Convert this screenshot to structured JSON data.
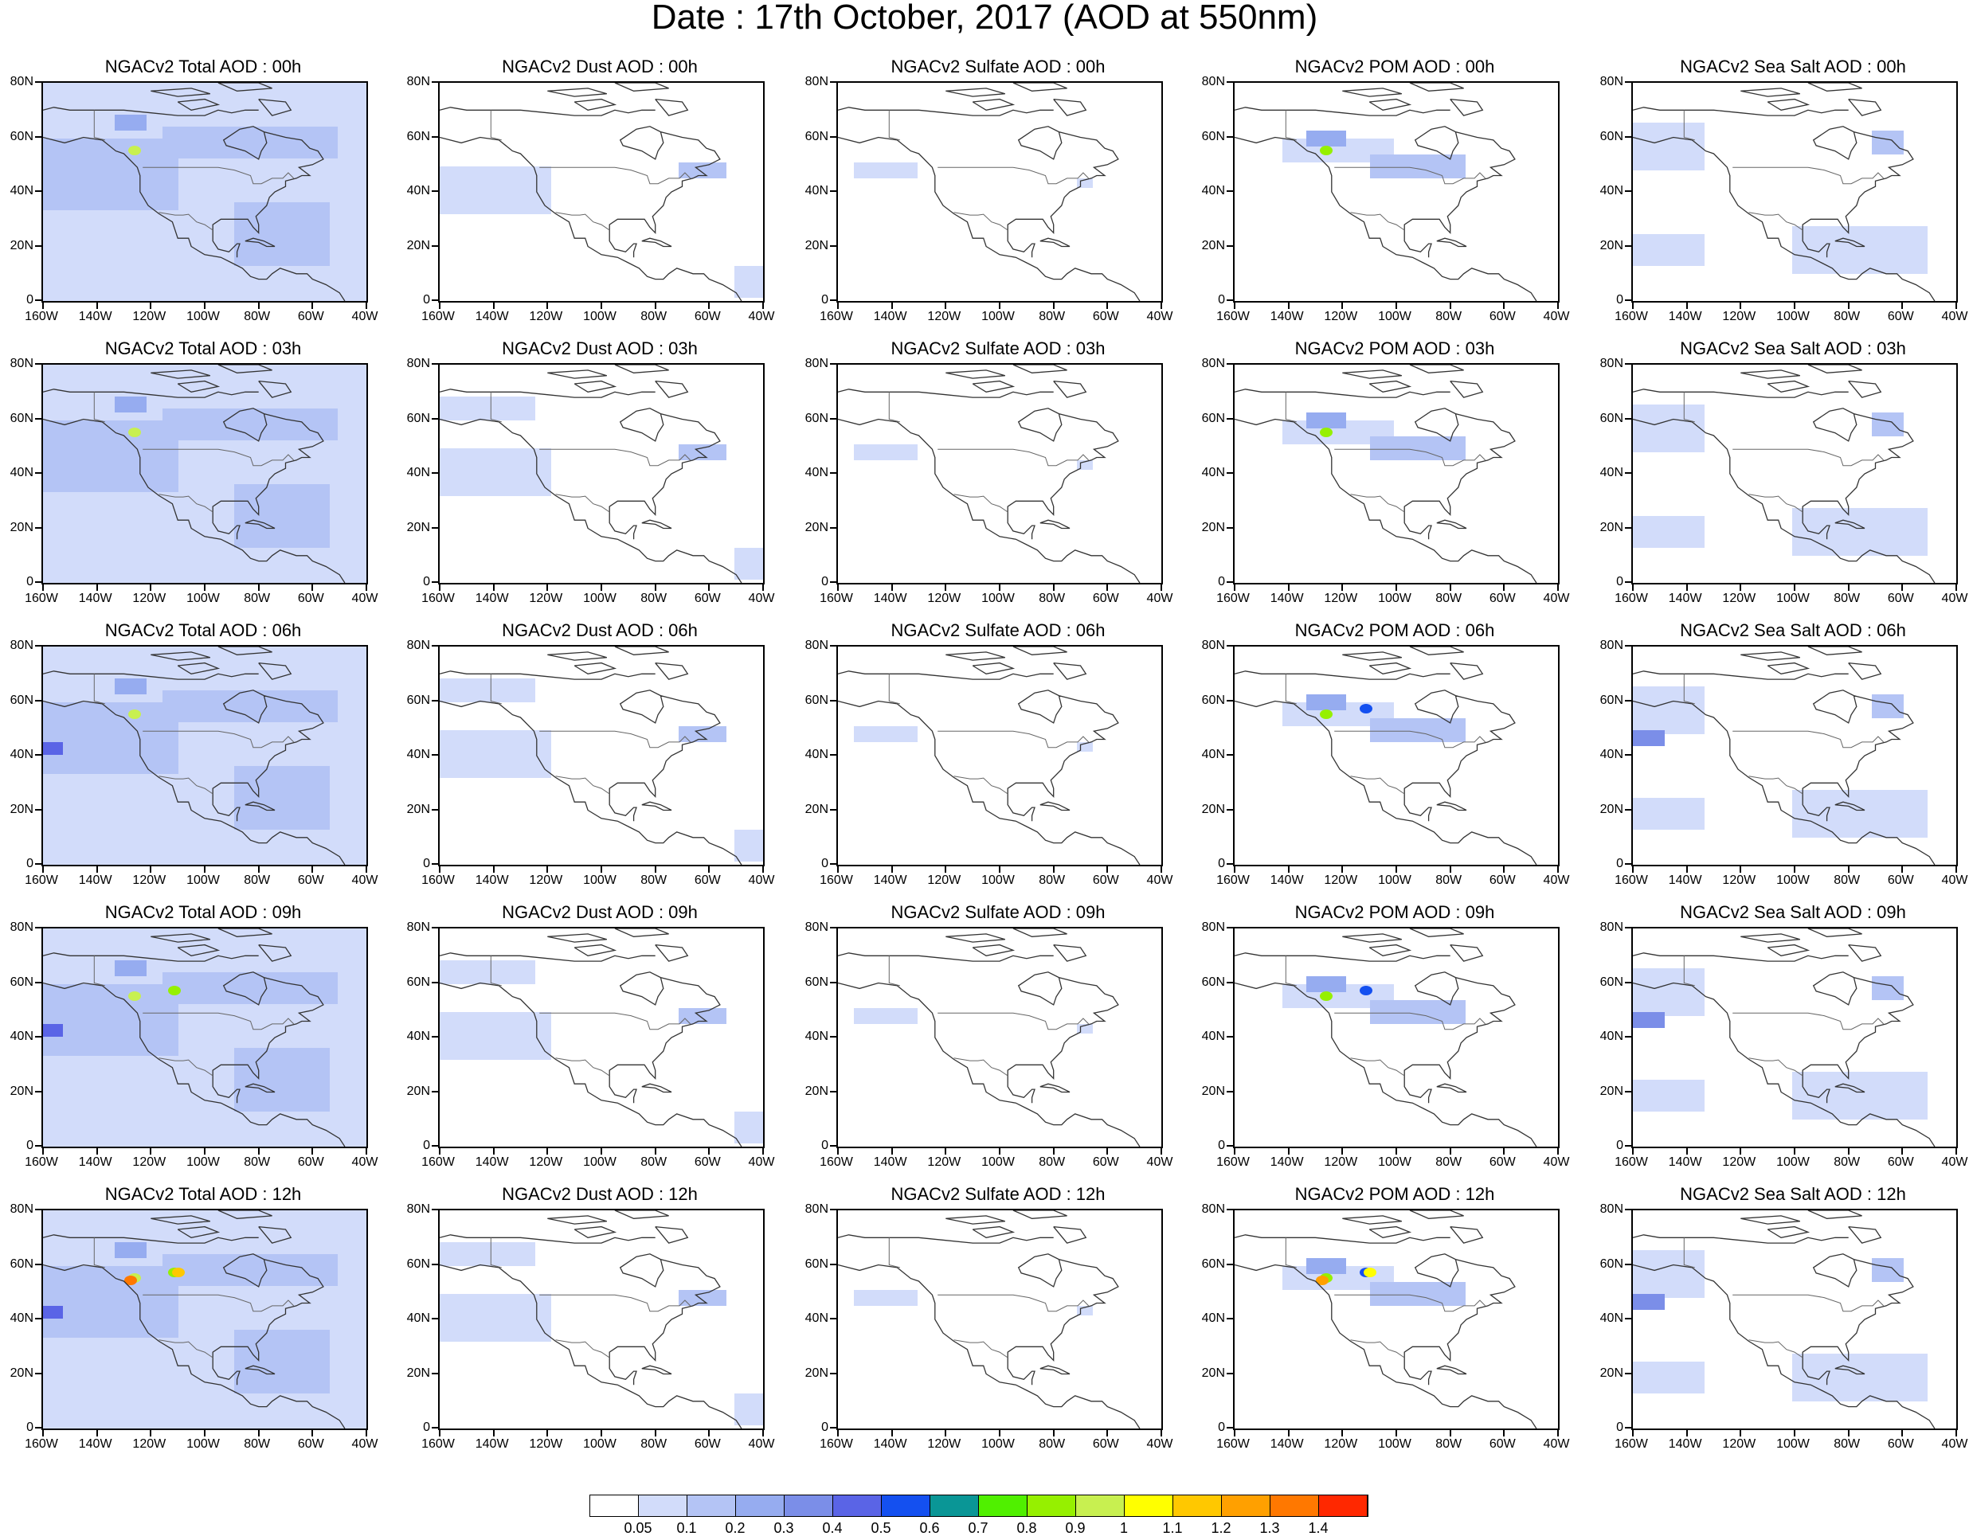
{
  "title": "Date : 17th October, 2017 (AOD at 550nm)",
  "y_labels": [
    "80N",
    "60N",
    "40N",
    "20N",
    "0"
  ],
  "x_labels": [
    "160W",
    "140W",
    "120W",
    "100W",
    "80W",
    "60W",
    "40W"
  ],
  "panels": [
    [
      "NGACv2 Total AOD : 00h",
      "NGACv2 Dust AOD : 00h",
      "NGACv2 Sulfate AOD : 00h",
      "NGACv2 POM AOD : 00h",
      "NGACv2 Sea Salt AOD : 00h"
    ],
    [
      "NGACv2 Total AOD : 03h",
      "NGACv2 Dust AOD : 03h",
      "NGACv2 Sulfate AOD : 03h",
      "NGACv2 POM AOD : 03h",
      "NGACv2 Sea Salt AOD : 03h"
    ],
    [
      "NGACv2 Total AOD : 06h",
      "NGACv2 Dust AOD : 06h",
      "NGACv2 Sulfate AOD : 06h",
      "NGACv2 POM AOD : 06h",
      "NGACv2 Sea Salt AOD : 06h"
    ],
    [
      "NGACv2 Total AOD : 09h",
      "NGACv2 Dust AOD : 09h",
      "NGACv2 Sulfate AOD : 09h",
      "NGACv2 POM AOD : 09h",
      "NGACv2 Sea Salt  AOD : 09h"
    ],
    [
      "NGACv2 Total AOD  : 12h",
      "NGACv2 Dust AOD : 12h",
      "NGACv2 Sulfate AOD : 12h",
      "NGACv2 POM  AOD : 12h",
      "NGACv2 Sea Salt  AOD : 12h"
    ]
  ],
  "colorbar": {
    "colors": [
      "#ffffff",
      "#d2dcfa",
      "#b4c4f5",
      "#96acf0",
      "#7b8ee8",
      "#5a64e6",
      "#1450f0",
      "#0a9696",
      "#50f000",
      "#96f000",
      "#c8f050",
      "#ffff00",
      "#ffc800",
      "#ffa000",
      "#ff7800",
      "#ff2800"
    ],
    "labels": [
      "0.05",
      "0.1",
      "0.2",
      "0.3",
      "0.4",
      "0.5",
      "0.6",
      "0.7",
      "0.8",
      "0.9",
      "1",
      "1.1",
      "1.2",
      "1.3",
      "1.4"
    ]
  }
}
